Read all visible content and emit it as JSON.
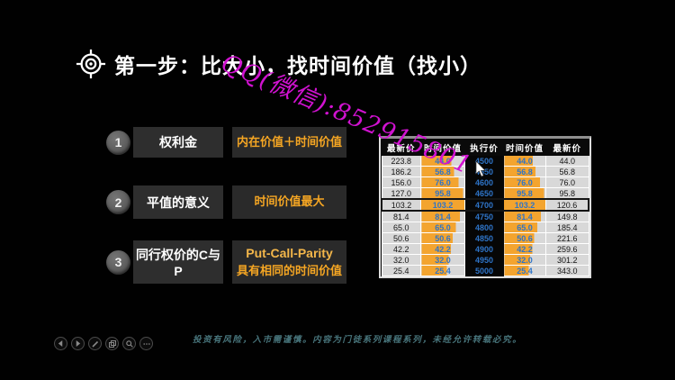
{
  "slide": {
    "title": "第一步：比大小，找时间价值（找小）",
    "watermark": "QQ(微信):852915801",
    "watermark_color": "#d012d0",
    "accent_orange": "#f5a623"
  },
  "steps": [
    {
      "num": "1",
      "label": "权利金",
      "value": "内在价值＋时间价值"
    },
    {
      "num": "2",
      "label": "平值的意义",
      "value": "时间价值最大"
    },
    {
      "num": "3",
      "label": "同行权价的C与P",
      "value_line1": "Put-Call-Parity",
      "value_line2": "具有相同的时间价值"
    }
  ],
  "table": {
    "headers": [
      "最新价",
      "时间价值",
      "执行价",
      "时间价值",
      "最新价"
    ],
    "rows": [
      [
        "223.8",
        "44.0",
        "4500",
        "44.0",
        "44.0"
      ],
      [
        "186.2",
        "56.8",
        "4550",
        "56.8",
        "56.8"
      ],
      [
        "156.0",
        "76.0",
        "4600",
        "76.0",
        "76.0"
      ],
      [
        "127.0",
        "95.8",
        "4650",
        "95.8",
        "95.8"
      ],
      [
        "103.2",
        "103.2",
        "4700",
        "103.2",
        "120.6"
      ],
      [
        "81.4",
        "81.4",
        "4750",
        "81.4",
        "149.8"
      ],
      [
        "65.0",
        "65.0",
        "4800",
        "65.0",
        "185.4"
      ],
      [
        "50.6",
        "50.6",
        "4850",
        "50.6",
        "221.6"
      ],
      [
        "42.2",
        "42.2",
        "4900",
        "42.2",
        "259.6"
      ],
      [
        "32.0",
        "32.0",
        "4950",
        "32.0",
        "301.2"
      ],
      [
        "25.4",
        "25.4",
        "5000",
        "25.4",
        "343.0"
      ]
    ],
    "highlight_row": 4,
    "bar_max": 103.2,
    "colors": {
      "bar": "#f3a42f",
      "cell_bg": "#d8d8d8",
      "value_text": "#2e74c8",
      "strike_bg": "#060606"
    }
  },
  "toolbar": {
    "icons": [
      "previous-slide",
      "next-slide",
      "pen",
      "see-all-slides",
      "zoom",
      "more-options"
    ]
  },
  "disclaimer": "投资有风险，入市需谨慎。内容为门徒系列课程系列，未经允许转载必究。"
}
